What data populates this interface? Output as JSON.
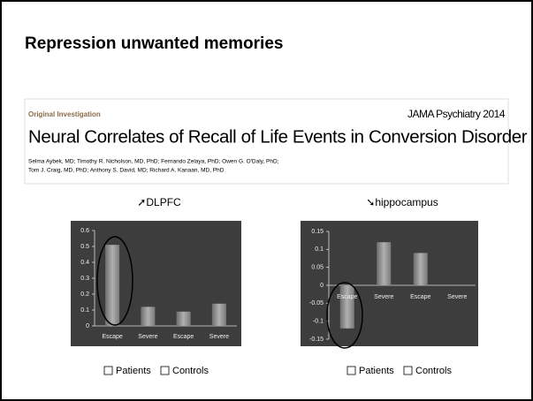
{
  "title": "Repression unwanted memories",
  "paper": {
    "label": "Original Investigation",
    "journal": "JAMA Psychiatry 2014",
    "title": "Neural Correlates of Recall of Life Events in Conversion Disorder",
    "authors": [
      "Selma Aybek, MD; Timothy R. Nicholson, MD, PhD; Fernando Zelaya, PhD; Owen G. O'Daly, PhD;",
      "Tom J. Craig, MD, PhD; Anthony S. David, MD; Richard A. Kanaan, MD, PhD"
    ]
  },
  "chart_data": [
    {
      "type": "bar",
      "title": "➚DLPFC",
      "categories": [
        "Escape",
        "Severe",
        "Escape",
        "Severe"
      ],
      "values": [
        0.51,
        0.12,
        0.09,
        0.14
      ],
      "color": "#8c8c8c",
      "ylim": [
        0,
        0.6
      ],
      "yticks": [
        0,
        0.1,
        0.2,
        0.3,
        0.4,
        0.5,
        0.6
      ],
      "legend": [
        "Patients",
        "Controls"
      ]
    },
    {
      "type": "bar",
      "title": "➘hippocampus",
      "categories": [
        "Escape",
        "Severe",
        "Escape",
        "Severe"
      ],
      "values": [
        -0.12,
        0.12,
        0.09,
        0
      ],
      "color": "#8c8c8c",
      "ylim": [
        -0.15,
        0.15
      ],
      "yticks": [
        -0.15,
        -0.1,
        -0.05,
        0,
        0.05,
        0.1,
        0.15
      ],
      "legend": [
        "Patients",
        "Controls"
      ]
    }
  ]
}
